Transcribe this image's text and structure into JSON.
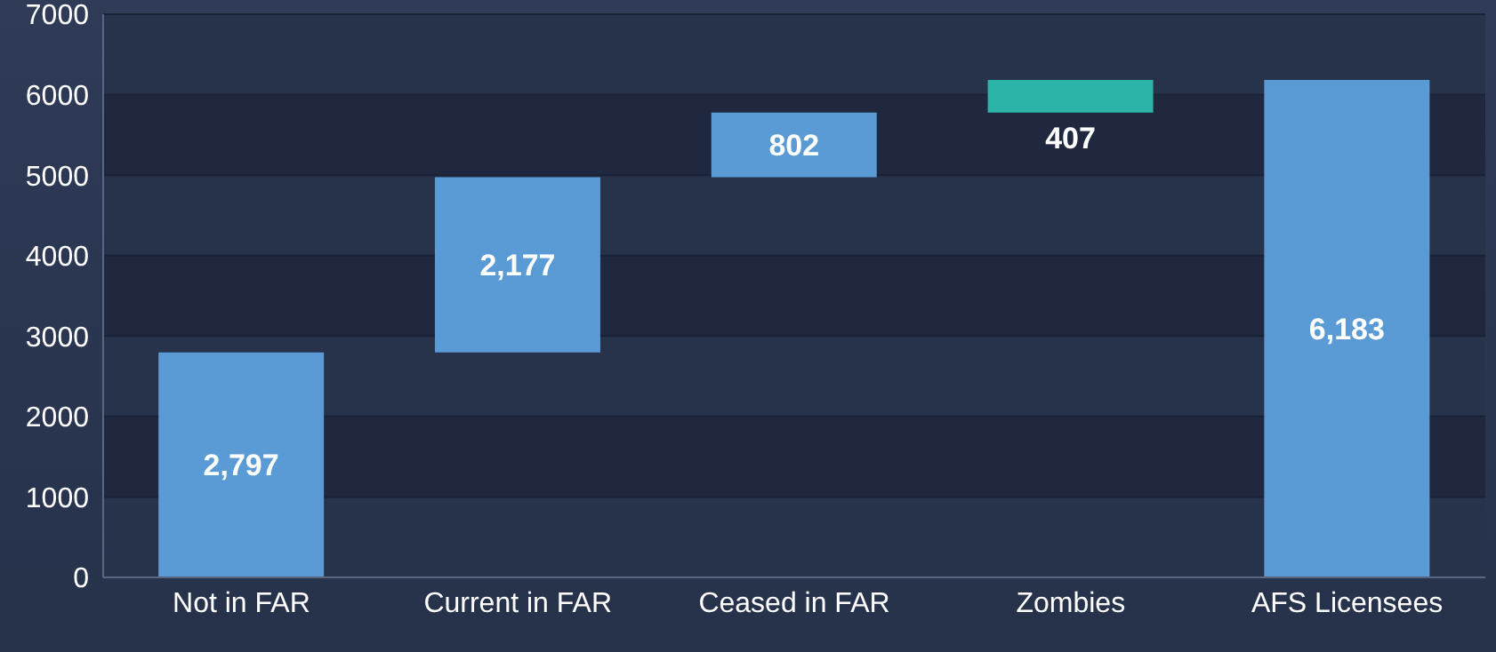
{
  "chart_data": {
    "type": "bar",
    "categories": [
      "Not in FAR",
      "Current in FAR",
      "Ceased in FAR",
      "Zombies",
      "AFS Licensees"
    ],
    "values": [
      2797,
      2177,
      802,
      407,
      6183
    ],
    "base": [
      0,
      2797,
      4974,
      5776,
      0
    ],
    "colors": [
      "#5b9bd5",
      "#5b9bd5",
      "#5b9bd5",
      "#2bb3a8",
      "#5b9bd5"
    ],
    "value_labels": [
      "2,797",
      "2,177",
      "802",
      "407",
      "6,183"
    ],
    "ylim": [
      0,
      7000
    ],
    "yticks": [
      0,
      1000,
      2000,
      3000,
      4000,
      5000,
      6000,
      7000
    ],
    "grid": "y"
  }
}
